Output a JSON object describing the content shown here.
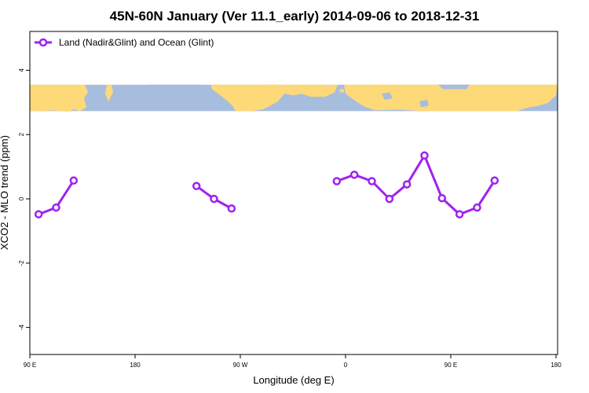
{
  "chart_data": {
    "type": "line",
    "title": "45N-60N January (Ver 11.1_early)   2014-09-06 to 2018-12-31",
    "xlabel": "Longitude (deg E)",
    "ylabel": "XCO2 - MLO trend (ppm)",
    "xlim": [
      90,
      450
    ],
    "ylim": [
      -4.8,
      5.3
    ],
    "x_ticks": [
      {
        "value": 90,
        "label": "90 E"
      },
      {
        "value": 180,
        "label": "180"
      },
      {
        "value": 270,
        "label": "90 W"
      },
      {
        "value": 360,
        "label": "0"
      },
      {
        "value": 450,
        "label": "90 E"
      },
      {
        "value": 540,
        "label": "180"
      }
    ],
    "y_ticks": [
      {
        "value": -4,
        "label": "-4"
      },
      {
        "value": -2,
        "label": "-2"
      },
      {
        "value": 0,
        "label": "0"
      },
      {
        "value": 2,
        "label": "2"
      },
      {
        "value": 4,
        "label": "4"
      }
    ],
    "grid": false,
    "legend_position": "top-left",
    "series": [
      {
        "name": "Land (Nadir&Glint) and Ocean (Glint)",
        "color": "#a020f0",
        "segments": [
          {
            "x": [
              97.5,
              112.5,
              127.5
            ],
            "y": [
              -0.48,
              -0.27,
              0.57
            ]
          },
          {
            "x": [
              232.5,
              247.5,
              262.5
            ],
            "y": [
              0.4,
              0.0,
              -0.3
            ]
          },
          {
            "x": [
              352.5,
              367.5,
              382.5,
              397.5,
              412.5,
              427.5,
              442.5,
              457.5,
              472.5,
              487.5,
              502.5
            ],
            "y": [
              0.55,
              0.75,
              0.55,
              0.0,
              0.45,
              1.35,
              0.02,
              -0.48,
              -0.27,
              0.57,
              null
            ]
          }
        ]
      }
    ],
    "map_band": {
      "y_range": [
        2.73,
        3.55
      ],
      "ocean_color": "#a7bddd",
      "land_color": "#fed978"
    }
  }
}
